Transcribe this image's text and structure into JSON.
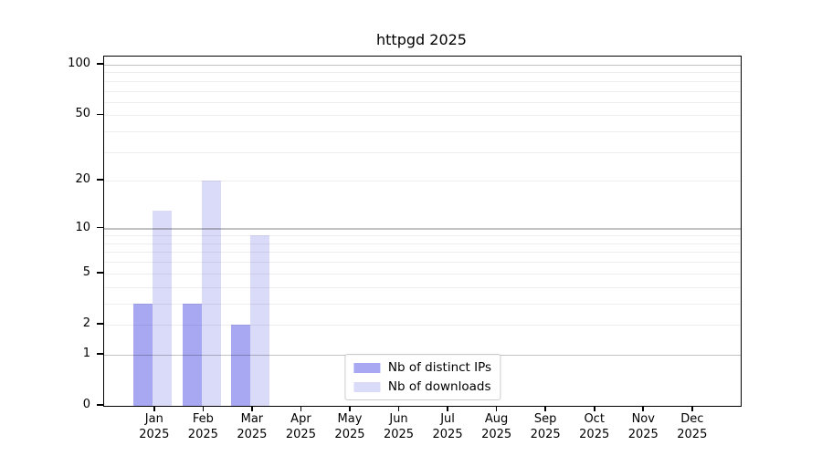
{
  "title": "httpgd 2025",
  "chart_data": {
    "type": "bar",
    "title": "httpgd 2025",
    "year": "2025",
    "categories": [
      "Jan",
      "Feb",
      "Mar",
      "Apr",
      "May",
      "Jun",
      "Jul",
      "Aug",
      "Sep",
      "Oct",
      "Nov",
      "Dec"
    ],
    "series": [
      {
        "name": "Nb of distinct IPs",
        "color": "#a8a8f2",
        "values": [
          3,
          3,
          2,
          0,
          0,
          0,
          0,
          0,
          0,
          0,
          0,
          0
        ]
      },
      {
        "name": "Nb of downloads",
        "color": "#dadaf9",
        "values": [
          13,
          20,
          9,
          0,
          0,
          0,
          0,
          0,
          0,
          0,
          0,
          0
        ]
      }
    ],
    "xlabel": "",
    "ylabel": "",
    "y_scale": "log1p",
    "ylim": [
      0,
      100
    ],
    "y_ticks": [
      100,
      50,
      20,
      10,
      5,
      2,
      1,
      0
    ],
    "y_major_gridlines": [
      1,
      10,
      100
    ],
    "y_minor_gridlines": [
      2,
      3,
      4,
      5,
      6,
      7,
      8,
      9,
      20,
      30,
      40,
      50,
      60,
      70,
      80,
      90
    ],
    "grid": true,
    "legend_position": "lower center",
    "colors": {
      "axis": "#000000",
      "major_grid": "#c2c2c2",
      "minor_grid": "#ececec",
      "background": "#ffffff"
    }
  }
}
